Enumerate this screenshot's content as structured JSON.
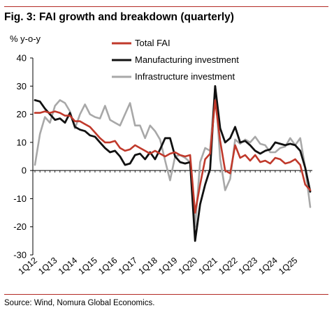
{
  "figure": {
    "title": "Fig. 3: FAI growth and breakdown (quarterly)",
    "source": "Source: Wind, Nomura Global Economics."
  },
  "colors": {
    "total": "#c0392b",
    "manufacturing": "#111111",
    "infrastructure": "#a8a8a8",
    "rule": "#b22a24"
  },
  "chart_data": {
    "type": "line",
    "ylabel": "% y-o-y",
    "ylim": [
      -30,
      40
    ],
    "yticks": [
      -30,
      -20,
      -10,
      0,
      10,
      20,
      30,
      40
    ],
    "grid": false,
    "legend_position": "top-center",
    "x_labels": [
      "1Q12",
      "1Q13",
      "1Q14",
      "1Q15",
      "1Q16",
      "1Q17",
      "1Q18",
      "1Q19",
      "1Q20",
      "1Q21",
      "1Q22",
      "1Q23",
      "1Q24",
      "1Q25"
    ],
    "x": [
      "1Q12",
      "2Q12",
      "3Q12",
      "4Q12",
      "1Q13",
      "2Q13",
      "3Q13",
      "4Q13",
      "1Q14",
      "2Q14",
      "3Q14",
      "4Q14",
      "1Q15",
      "2Q15",
      "3Q15",
      "4Q15",
      "1Q16",
      "2Q16",
      "3Q16",
      "4Q16",
      "1Q17",
      "2Q17",
      "3Q17",
      "4Q17",
      "1Q18",
      "2Q18",
      "3Q18",
      "4Q18",
      "1Q19",
      "2Q19",
      "3Q19",
      "4Q19",
      "1Q20",
      "2Q20",
      "3Q20",
      "4Q20",
      "1Q21",
      "2Q21",
      "3Q21",
      "4Q21",
      "1Q22",
      "2Q22",
      "3Q22",
      "4Q22",
      "1Q23",
      "2Q23",
      "3Q23",
      "4Q23",
      "1Q24",
      "2Q24",
      "3Q24",
      "4Q24",
      "1Q25",
      "2Q25",
      "3Q25",
      "4Q25"
    ],
    "series": [
      {
        "name": "Total FAI",
        "values": [
          20.5,
          20.5,
          21,
          20.5,
          21,
          20.5,
          19.5,
          19.5,
          17.5,
          17.5,
          16.5,
          15.5,
          13.5,
          11.5,
          10,
          10,
          10.5,
          8,
          7,
          7.5,
          9,
          8,
          7,
          6,
          7,
          6,
          5,
          6,
          6.5,
          5.5,
          5,
          5.5,
          -15,
          -5,
          4,
          6,
          25,
          10.5,
          0,
          -1,
          9,
          4.5,
          5.5,
          3.5,
          5.5,
          3,
          3.5,
          2.5,
          4.5,
          4,
          2.5,
          3,
          4,
          2,
          -5,
          -7
        ]
      },
      {
        "name": "Manufacturing investment",
        "values": [
          25,
          24.5,
          22,
          20,
          18,
          18.5,
          17,
          20.5,
          15.5,
          14.5,
          14,
          12.5,
          12,
          10,
          8,
          6.5,
          7,
          5,
          2,
          2.5,
          5.5,
          6,
          4,
          6.5,
          4,
          7.5,
          11.5,
          11.5,
          5,
          3,
          2.5,
          3,
          -25,
          -12,
          -5,
          0.5,
          30,
          15,
          10,
          11.5,
          15.5,
          10,
          10.5,
          9,
          7,
          6,
          7,
          7.5,
          10,
          9.5,
          9,
          9.5,
          9,
          7,
          1,
          -7.5
        ]
      },
      {
        "name": "Infrastructure investment",
        "values": [
          2,
          13,
          19,
          17,
          23,
          25,
          24,
          21,
          15,
          20,
          23.5,
          20,
          19,
          18.5,
          23,
          18,
          17,
          16,
          20,
          24,
          16,
          16,
          11.5,
          16,
          14,
          11,
          3.5,
          -3.5,
          5,
          5.5,
          4.5,
          3,
          -20,
          3,
          8,
          7,
          30,
          4,
          -7,
          -3,
          11,
          9.5,
          11,
          10,
          12,
          9.5,
          9,
          6.5,
          6.5,
          8,
          8.5,
          11.5,
          9,
          11.5,
          1,
          -13
        ]
      }
    ]
  }
}
